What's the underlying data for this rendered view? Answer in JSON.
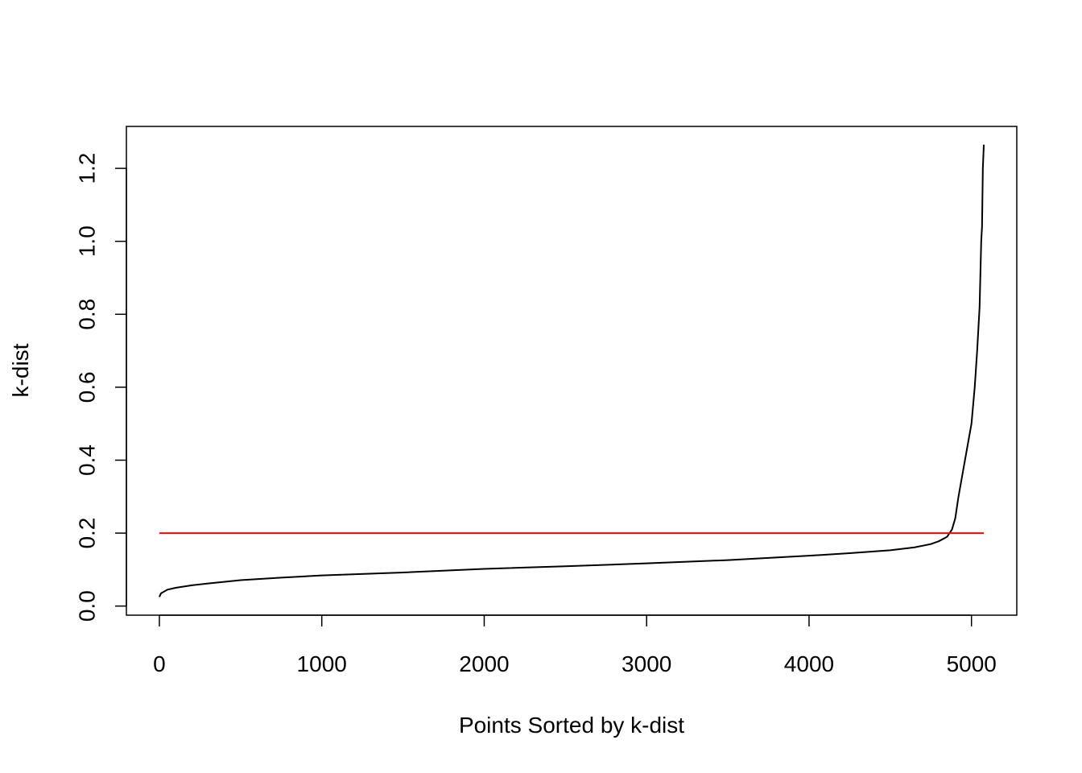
{
  "chart_data": {
    "type": "line",
    "xlabel": "Points Sorted by k-dist",
    "ylabel": "k-dist",
    "xlim": [
      -203,
      5279
    ],
    "ylim": [
      -0.025,
      1.315
    ],
    "xticks": [
      0,
      1000,
      2000,
      3000,
      4000,
      5000
    ],
    "yticks": [
      {
        "value": 0,
        "label": "0.0"
      },
      0.2,
      0.4,
      0.6,
      0.8,
      {
        "value": 1,
        "label": "1.0"
      },
      1.2
    ],
    "series": [
      {
        "color": "#000000",
        "x": [
          0,
          10,
          50,
          100,
          200,
          300,
          500,
          750,
          1000,
          1500,
          2000,
          2500,
          3000,
          3500,
          4000,
          4250,
          4500,
          4650,
          4750,
          4800,
          4850,
          4880,
          4900,
          4920,
          4940,
          4960,
          4980,
          5000,
          5020,
          5035,
          5050,
          5060,
          5065,
          5070,
          5076
        ],
        "values": [
          0.025,
          0.035,
          0.045,
          0.05,
          0.057,
          0.062,
          0.071,
          0.078,
          0.084,
          0.092,
          0.102,
          0.109,
          0.117,
          0.126,
          0.138,
          0.145,
          0.153,
          0.161,
          0.17,
          0.178,
          0.19,
          0.21,
          0.24,
          0.3,
          0.35,
          0.4,
          0.45,
          0.5,
          0.6,
          0.7,
          0.82,
          1.0,
          1.04,
          1.2,
          1.265
        ]
      },
      {
        "color": "#ff0000",
        "x": [
          0,
          5076
        ],
        "values": [
          0.2,
          0.2
        ]
      }
    ]
  }
}
